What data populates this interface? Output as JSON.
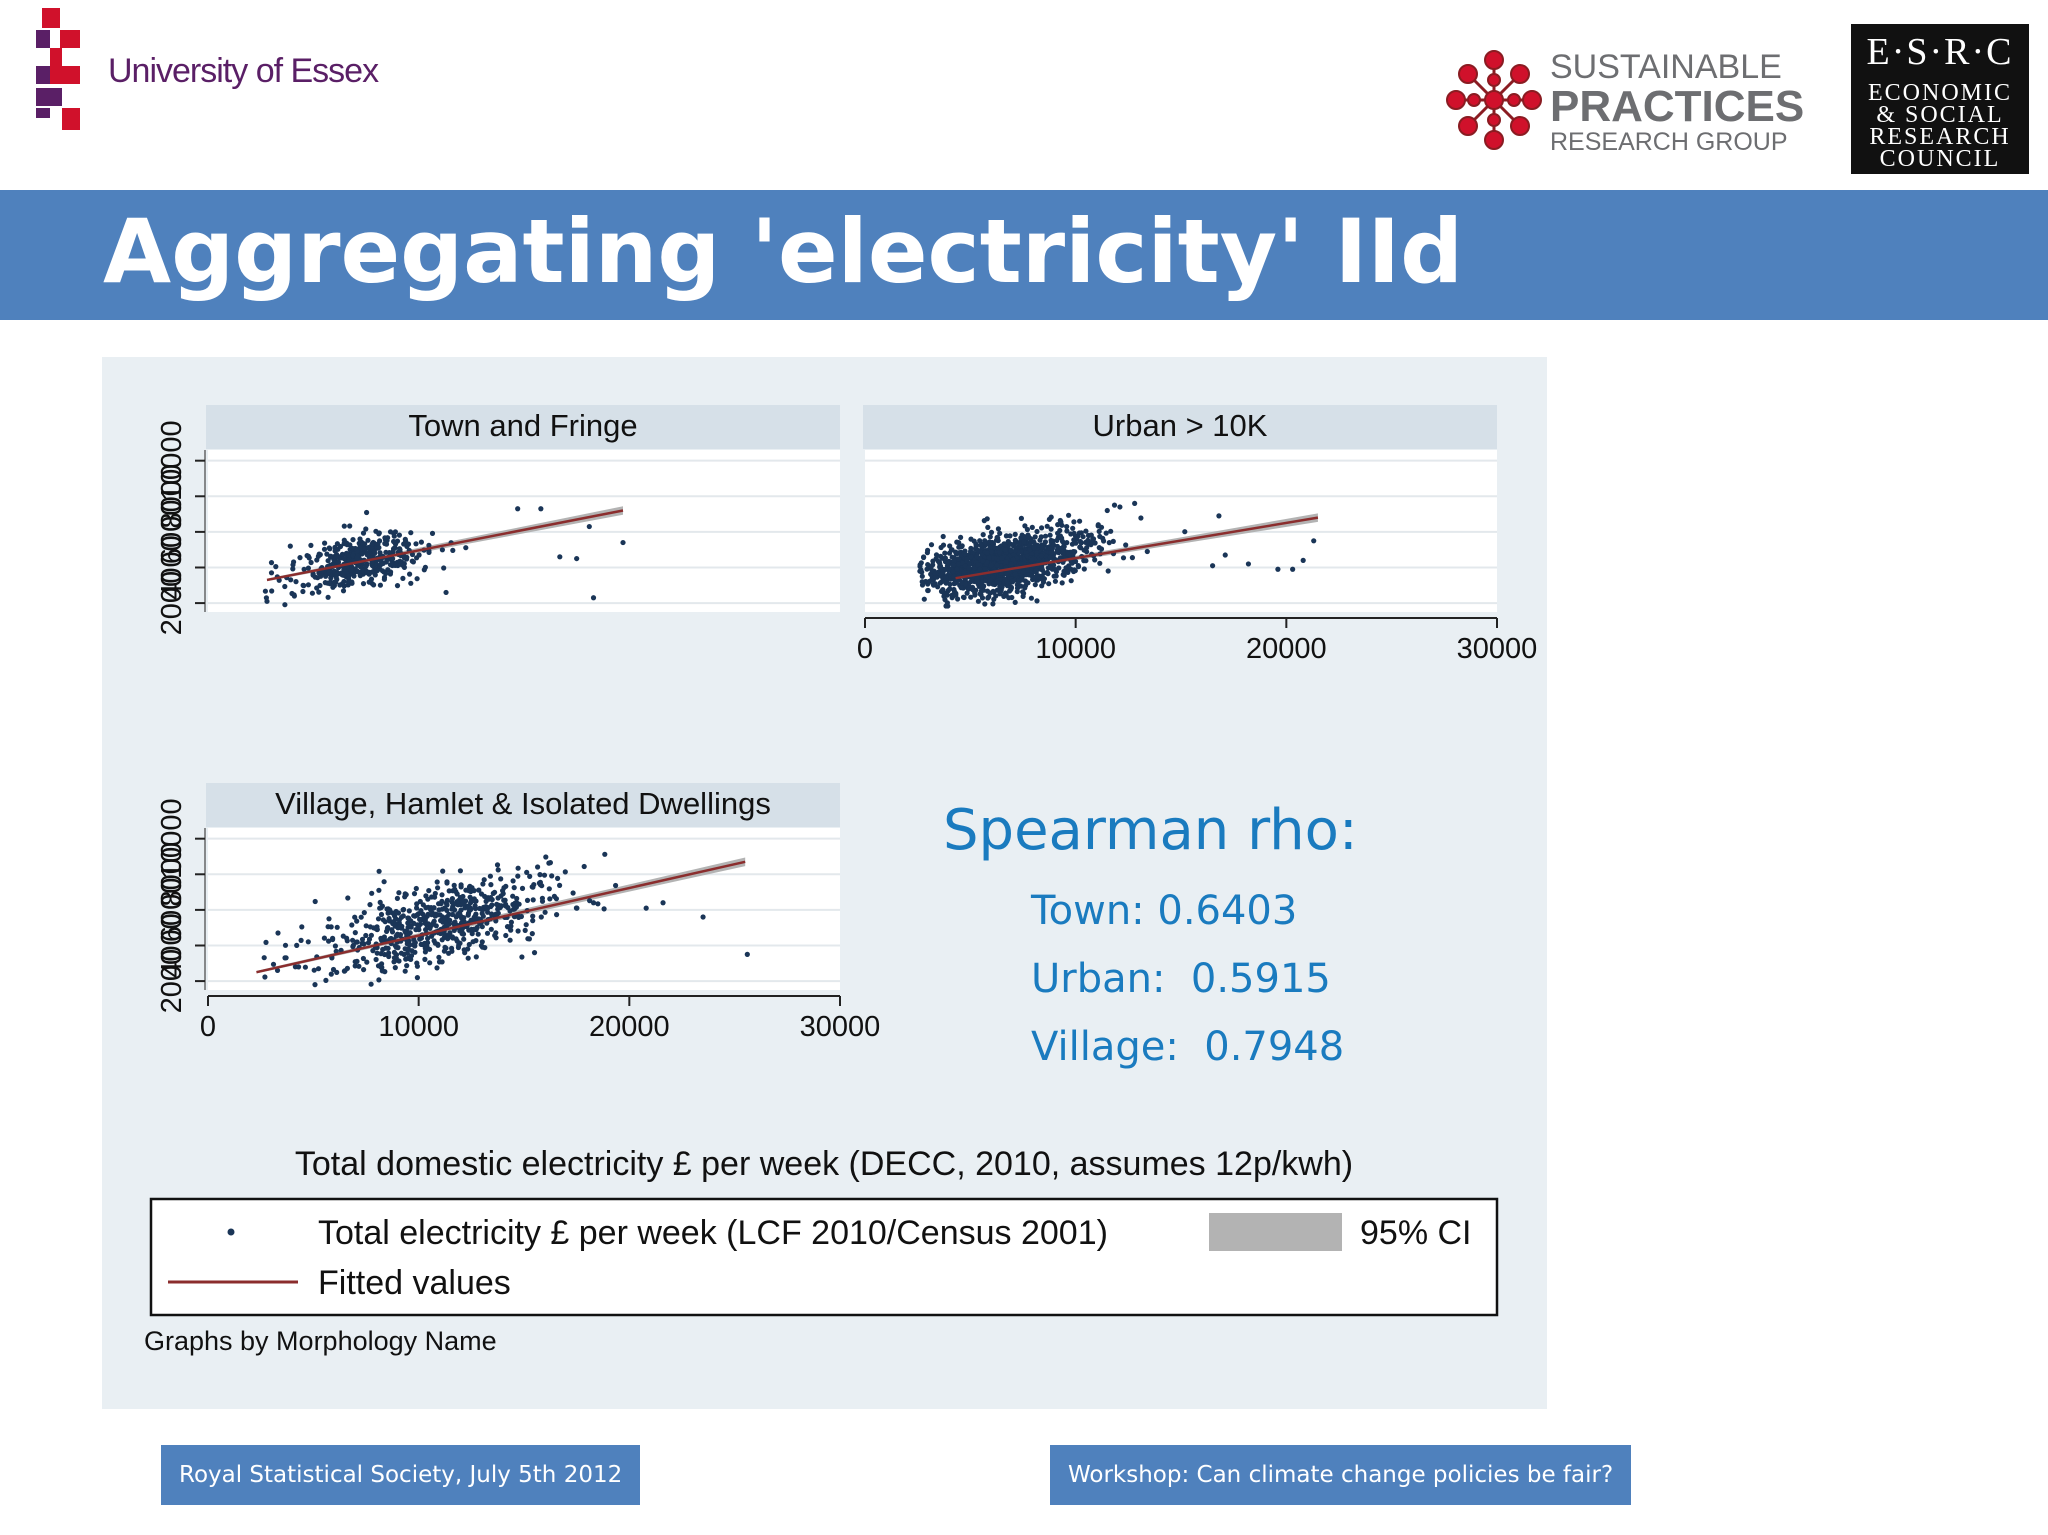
{
  "header": {
    "essex_text": "University of Essex",
    "spr_line1": "SUSTAINABLE",
    "spr_line2": "PRACTICES",
    "spr_line3": "RESEARCH GROUP",
    "esrc_line1": "E·S·R·C",
    "esrc_line2": "ECONOMIC",
    "esrc_line3": "& SOCIAL",
    "esrc_line4": "RESEARCH",
    "esrc_line5": "COUNCIL"
  },
  "title": "Aggregating 'electricity' IId",
  "colors": {
    "title_bar": "#4f81bd",
    "panel_bg": "#e9eff3",
    "points": "#1a3557",
    "fit_line": "#8b2d2d",
    "ci_band": "#b3b3b3",
    "stats_text": "#1a7bbf"
  },
  "stats": {
    "heading": "Spearman rho:",
    "lines": [
      "Town: 0.6403",
      "Urban:  0.5915",
      "Village:  0.7948"
    ]
  },
  "footer": {
    "left": "Royal Statistical Society, July 5th 2012",
    "right": "Workshop: Can climate change policies be fair?"
  },
  "chart_data": {
    "type": "scatter",
    "xlabel": "Total domestic electricity £ per week (DECC, 2010, assumes 12p/kwh)",
    "x_ticks": [
      "0",
      "10000",
      "20000",
      "30000"
    ],
    "x_tick_values": [
      0,
      10000,
      20000,
      30000
    ],
    "xlim": [
      0,
      30000
    ],
    "y_ticks": [
      "2000",
      "4000",
      "6000",
      "8000",
      "10000"
    ],
    "y_tick_values": [
      2000,
      4000,
      6000,
      8000,
      10000
    ],
    "ylim": [
      1500,
      10600
    ],
    "note": "Graphs by Morphology Name",
    "legend": {
      "points_label": "Total electricity £ per week (LCF 2010/Census 2001)",
      "ci_label": "95% CI",
      "fit_label": "Fitted values",
      "position": "bottom"
    },
    "panels": [
      {
        "title": "Town and Fringe",
        "fit": {
          "x": [
            2800,
            19700
          ],
          "y": [
            3300,
            7200
          ]
        },
        "cluster": {
          "x_center": 7000,
          "x_sd": 2000,
          "y_center": 4300,
          "y_sd": 700,
          "n": 420
        },
        "outliers": [
          [
            15800,
            7300
          ],
          [
            18100,
            6300
          ],
          [
            19700,
            5400
          ],
          [
            16700,
            4600
          ],
          [
            17500,
            4500
          ],
          [
            18300,
            2300
          ],
          [
            11300,
            2600
          ],
          [
            4100,
            2400
          ],
          [
            2800,
            2100
          ],
          [
            14700,
            7300
          ]
        ]
      },
      {
        "title": "Urban > 10K",
        "fit": {
          "x": [
            4300,
            21500
          ],
          "y": [
            3400,
            6800
          ]
        },
        "cluster": {
          "x_center": 6500,
          "x_sd": 2600,
          "y_center": 4200,
          "y_sd": 800,
          "n": 1300
        },
        "outliers": [
          [
            21300,
            5500
          ],
          [
            20800,
            4400
          ],
          [
            20300,
            3900
          ],
          [
            19600,
            3900
          ],
          [
            18200,
            4200
          ],
          [
            17100,
            4700
          ],
          [
            16500,
            4100
          ],
          [
            12800,
            7600
          ],
          [
            12100,
            7400
          ],
          [
            11500,
            7200
          ],
          [
            16800,
            6900
          ]
        ]
      },
      {
        "title": "Village, Hamlet & Isolated Dwellings",
        "fit": {
          "x": [
            2300,
            25500
          ],
          "y": [
            2500,
            8700
          ]
        },
        "cluster": {
          "x_center": 11000,
          "x_sd": 3700,
          "y_center": 5300,
          "y_sd": 1100,
          "n": 640
        },
        "outliers": [
          [
            25600,
            3500
          ],
          [
            23500,
            5600
          ],
          [
            21600,
            6400
          ],
          [
            20800,
            6100
          ],
          [
            18300,
            6400
          ],
          [
            15500,
            3600
          ],
          [
            4300,
            2800
          ],
          [
            3300,
            2600
          ]
        ]
      }
    ]
  }
}
